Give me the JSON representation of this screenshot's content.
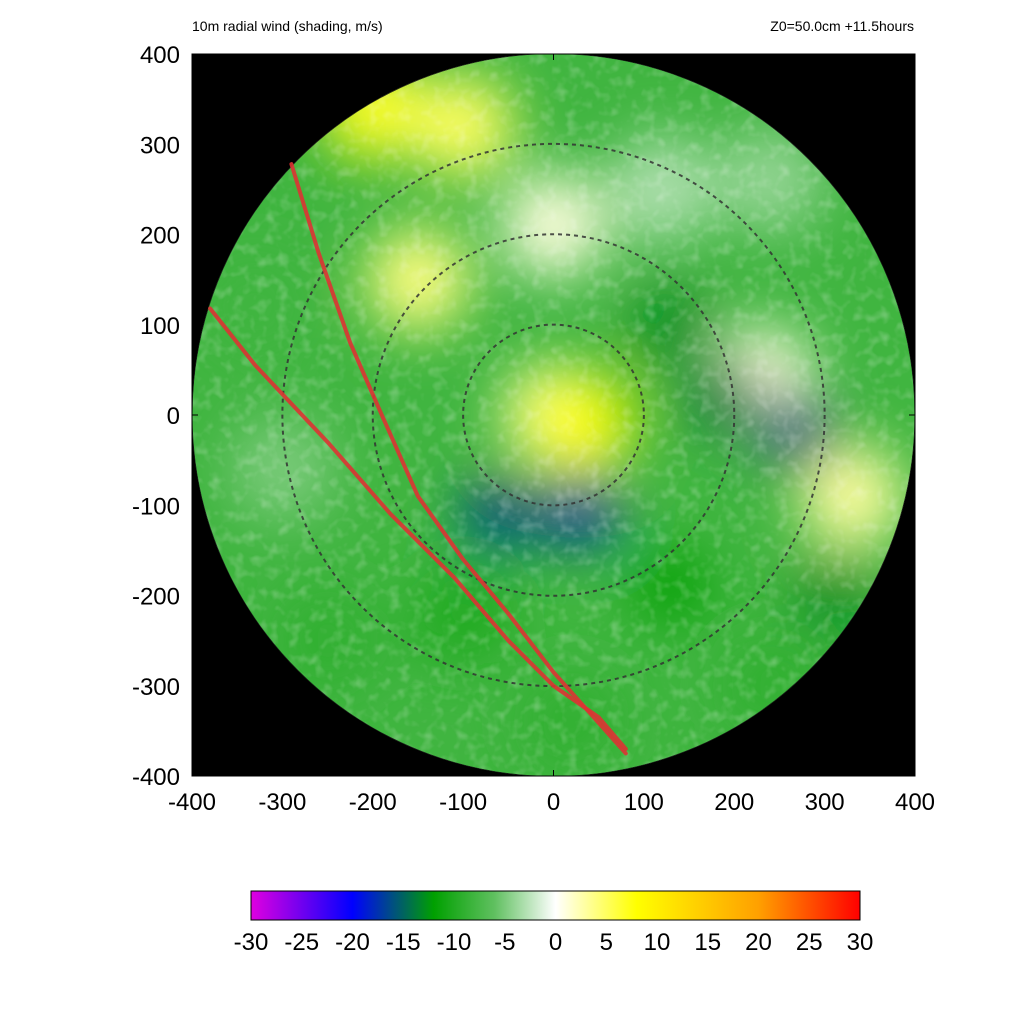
{
  "header": {
    "left": "10m radial wind (shading, m/s)",
    "right": "Z0=50.0cm  +11.5hours"
  },
  "chart_data": {
    "type": "heatmap",
    "variable": "10m radial wind",
    "units": "m/s",
    "xlim": [
      -400,
      400
    ],
    "ylim": [
      -400,
      400
    ],
    "x_ticks": [
      -400,
      -300,
      -200,
      -100,
      0,
      100,
      200,
      300,
      400
    ],
    "y_ticks": [
      -400,
      -300,
      -200,
      -100,
      0,
      100,
      200,
      300,
      400
    ],
    "domain_radius": 400,
    "outside_domain_color": "#000000",
    "range_rings": [
      100,
      200,
      300
    ],
    "colorbar": {
      "min": -30,
      "max": 30,
      "ticks": [
        -30,
        -25,
        -20,
        -15,
        -10,
        -5,
        0,
        5,
        10,
        15,
        20,
        25,
        30
      ],
      "stops": [
        {
          "value": -30,
          "color": "#e000e0"
        },
        {
          "value": -20,
          "color": "#0000ff"
        },
        {
          "value": -12,
          "color": "#00a000"
        },
        {
          "value": -6,
          "color": "#60c060"
        },
        {
          "value": 0,
          "color": "#ffffff"
        },
        {
          "value": 8,
          "color": "#ffff00"
        },
        {
          "value": 20,
          "color": "#ffa000"
        },
        {
          "value": 30,
          "color": "#ff0000"
        }
      ]
    },
    "field_features": [
      {
        "x": 0,
        "y": 0,
        "value": 3
      },
      {
        "x": 30,
        "y": -10,
        "value": 8
      },
      {
        "x": -150,
        "y": 150,
        "value": 4
      },
      {
        "x": -200,
        "y": 340,
        "value": 7
      },
      {
        "x": -100,
        "y": 320,
        "value": 5
      },
      {
        "x": 0,
        "y": 210,
        "value": 1
      },
      {
        "x": 330,
        "y": -90,
        "value": 3
      },
      {
        "x": 230,
        "y": 40,
        "value": 1
      },
      {
        "x": 120,
        "y": 250,
        "value": -3
      },
      {
        "x": 240,
        "y": 260,
        "value": -4
      },
      {
        "x": 30,
        "y": -105,
        "value": -17
      },
      {
        "x": -60,
        "y": -110,
        "value": -16
      },
      {
        "x": 130,
        "y": 100,
        "value": -13
      },
      {
        "x": 190,
        "y": 20,
        "value": -14
      },
      {
        "x": 270,
        "y": -20,
        "value": -16
      },
      {
        "x": 310,
        "y": -200,
        "value": -13
      },
      {
        "x": 130,
        "y": -190,
        "value": -12
      },
      {
        "x": -100,
        "y": -220,
        "value": -10
      },
      {
        "x": 20,
        "y": -340,
        "value": -9
      },
      {
        "x": -300,
        "y": -60,
        "value": -5
      },
      {
        "x": -330,
        "y": 120,
        "value": -8
      },
      {
        "x": -250,
        "y": -250,
        "value": -9
      },
      {
        "x": 240,
        "y": -300,
        "value": -9
      }
    ],
    "track_color": "#dd3333",
    "tracks": [
      [
        [
          -290,
          278
        ],
        [
          -260,
          180
        ],
        [
          -225,
          80
        ],
        [
          -190,
          0
        ],
        [
          -150,
          -90
        ],
        [
          -100,
          -160
        ],
        [
          -50,
          -220
        ],
        [
          0,
          -285
        ],
        [
          40,
          -330
        ],
        [
          80,
          -375
        ]
      ],
      [
        [
          -380,
          118
        ],
        [
          -330,
          55
        ],
        [
          -250,
          -30
        ],
        [
          -180,
          -110
        ],
        [
          -110,
          -180
        ],
        [
          -50,
          -250
        ],
        [
          0,
          -300
        ],
        [
          50,
          -335
        ],
        [
          80,
          -370
        ]
      ]
    ]
  }
}
